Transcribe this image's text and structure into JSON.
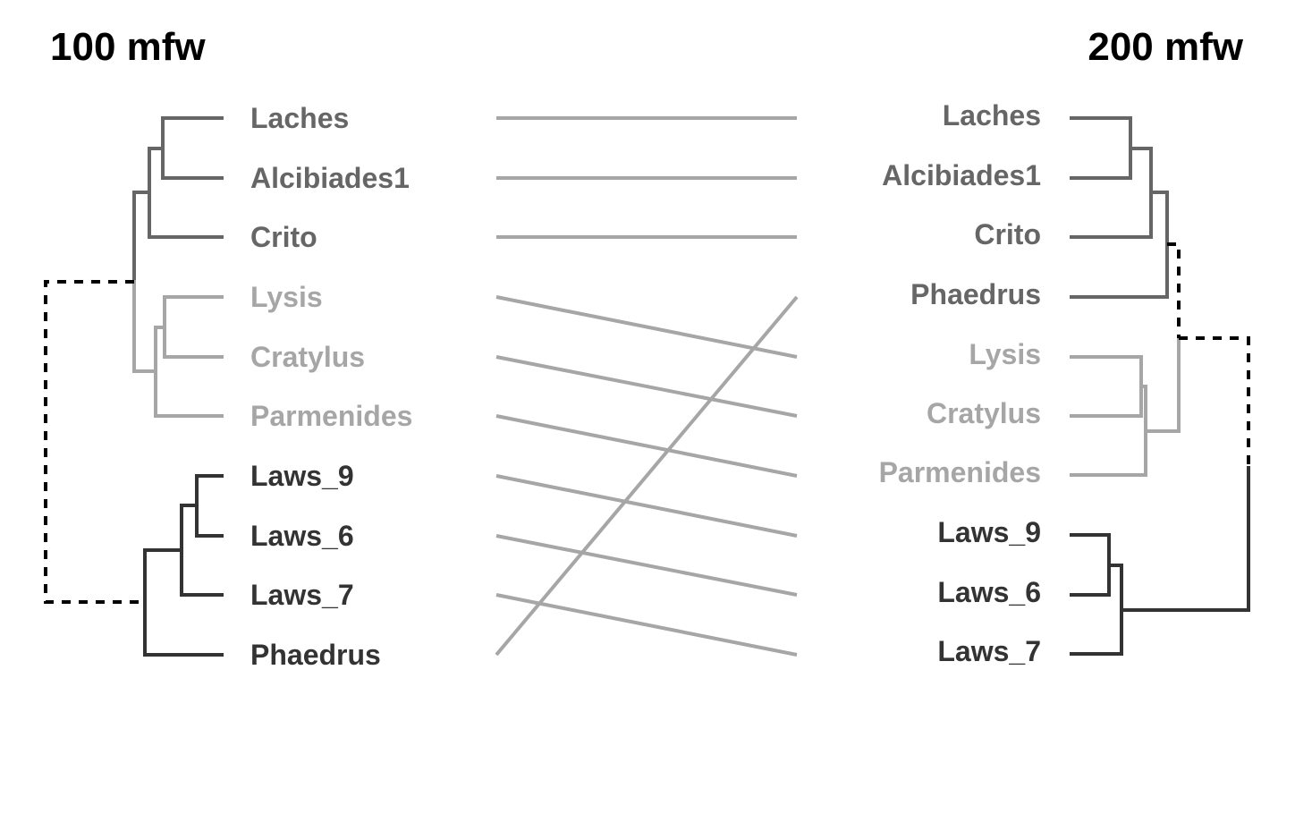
{
  "titles": {
    "left": "100 mfw",
    "right": "200 mfw"
  },
  "colors": {
    "group1": "#666666",
    "group2": "#a6a6a6",
    "group3": "#333333",
    "connector": "#a6a6a6"
  },
  "left_leaves": [
    {
      "label": "Laches",
      "group": "group1"
    },
    {
      "label": "Alcibiades1",
      "group": "group1"
    },
    {
      "label": "Crito",
      "group": "group1"
    },
    {
      "label": "Lysis",
      "group": "group2"
    },
    {
      "label": "Cratylus",
      "group": "group2"
    },
    {
      "label": "Parmenides",
      "group": "group2"
    },
    {
      "label": "Laws_9",
      "group": "group3"
    },
    {
      "label": "Laws_6",
      "group": "group3"
    },
    {
      "label": "Laws_7",
      "group": "group3"
    },
    {
      "label": "Phaedrus",
      "group": "group3"
    }
  ],
  "right_leaves": [
    {
      "label": "Laches",
      "group": "group1"
    },
    {
      "label": "Alcibiades1",
      "group": "group1"
    },
    {
      "label": "Crito",
      "group": "group1"
    },
    {
      "label": "Phaedrus",
      "group": "group1"
    },
    {
      "label": "Lysis",
      "group": "group2"
    },
    {
      "label": "Cratylus",
      "group": "group2"
    },
    {
      "label": "Parmenides",
      "group": "group2"
    },
    {
      "label": "Laws_9",
      "group": "group3"
    },
    {
      "label": "Laws_6",
      "group": "group3"
    },
    {
      "label": "Laws_7",
      "group": "group3"
    }
  ],
  "connections": [
    [
      0,
      0
    ],
    [
      1,
      1
    ],
    [
      2,
      2
    ],
    [
      3,
      4
    ],
    [
      4,
      5
    ],
    [
      5,
      6
    ],
    [
      6,
      7
    ],
    [
      7,
      8
    ],
    [
      8,
      9
    ],
    [
      9,
      3
    ]
  ]
}
